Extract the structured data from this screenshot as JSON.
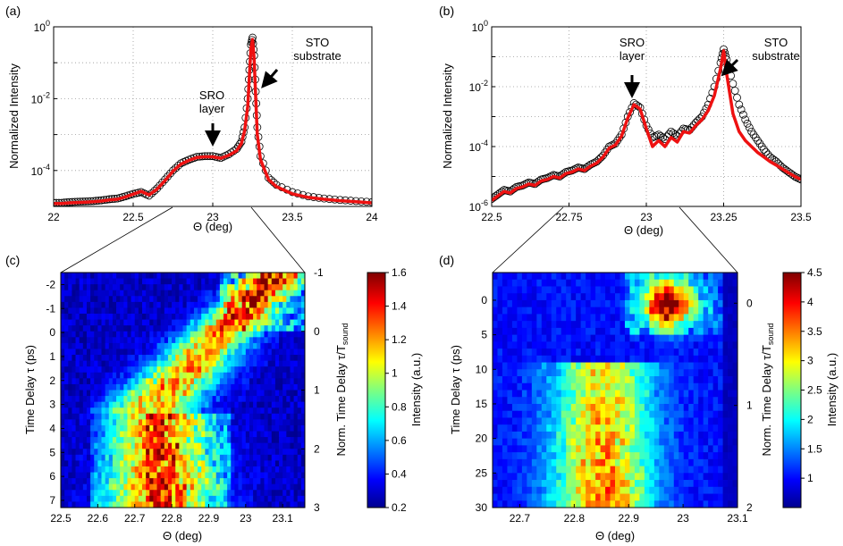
{
  "chart_data": [
    {
      "panel": "(a)",
      "type": "line",
      "xlabel": "Θ (deg)",
      "ylabel": "Normalized Intensity",
      "xlim": [
        22,
        24
      ],
      "ylim_log10": [
        -5,
        0
      ],
      "yscale": "log",
      "x_ticks": [
        "22",
        "22.5",
        "23",
        "23.5",
        "24"
      ],
      "y_ticks": [
        "10^0",
        "10^-2",
        "10^-4"
      ],
      "grid": true,
      "annotations": [
        {
          "text": "SRO\nlayer",
          "lines": [
            "SRO",
            "layer"
          ],
          "x": 22.98,
          "y_log10": -3.6
        },
        {
          "text": "STO\nsubstrate",
          "lines": [
            "STO",
            "substrate"
          ],
          "x": 23.25,
          "y_log10": -1.5
        }
      ],
      "series": [
        {
          "name": "measured",
          "style": "open black circles",
          "x": [
            22.0,
            22.05,
            22.1,
            22.15,
            22.2,
            22.25,
            22.3,
            22.35,
            22.4,
            22.45,
            22.5,
            22.55,
            22.6,
            22.65,
            22.7,
            22.75,
            22.8,
            22.85,
            22.9,
            22.95,
            23.0,
            23.05,
            23.1,
            23.15,
            23.18,
            23.2,
            23.22,
            23.23,
            23.24,
            23.25,
            23.26,
            23.27,
            23.28,
            23.3,
            23.35,
            23.4,
            23.5,
            23.6,
            23.7,
            23.8,
            23.9,
            24.0
          ],
          "y_log10": [
            -4.9,
            -4.9,
            -4.88,
            -4.87,
            -4.86,
            -4.85,
            -4.83,
            -4.8,
            -4.78,
            -4.72,
            -4.65,
            -4.6,
            -4.7,
            -4.5,
            -4.25,
            -4.0,
            -3.8,
            -3.7,
            -3.62,
            -3.6,
            -3.6,
            -3.65,
            -3.55,
            -3.4,
            -3.2,
            -2.8,
            -2.0,
            -1.2,
            -0.5,
            -0.3,
            -0.8,
            -1.8,
            -2.8,
            -3.6,
            -4.2,
            -4.4,
            -4.6,
            -4.72,
            -4.78,
            -4.82,
            -4.85,
            -4.88
          ]
        },
        {
          "name": "fit",
          "style": "red line",
          "x": [
            22.0,
            22.05,
            22.1,
            22.15,
            22.2,
            22.25,
            22.3,
            22.35,
            22.4,
            22.45,
            22.5,
            22.55,
            22.6,
            22.65,
            22.7,
            22.75,
            22.8,
            22.85,
            22.9,
            22.95,
            23.0,
            23.05,
            23.1,
            23.15,
            23.18,
            23.2,
            23.22,
            23.23,
            23.24,
            23.25,
            23.26,
            23.27,
            23.28,
            23.3,
            23.35,
            23.4,
            23.5,
            23.6,
            23.7,
            23.8,
            23.9,
            24.0
          ],
          "y_log10": [
            -4.92,
            -4.92,
            -4.9,
            -4.89,
            -4.88,
            -4.87,
            -4.85,
            -4.82,
            -4.8,
            -4.74,
            -4.66,
            -4.58,
            -4.68,
            -4.52,
            -4.28,
            -4.02,
            -3.82,
            -3.72,
            -3.64,
            -3.62,
            -3.62,
            -3.66,
            -3.58,
            -3.45,
            -3.25,
            -2.9,
            -2.2,
            -1.4,
            -0.6,
            -0.35,
            -0.9,
            -2.0,
            -3.0,
            -3.7,
            -4.25,
            -4.45,
            -4.65,
            -4.75,
            -4.8,
            -4.84,
            -4.87,
            -4.9
          ]
        }
      ]
    },
    {
      "panel": "(b)",
      "type": "line",
      "xlabel": "Θ (deg)",
      "ylabel": "Normalized Intensity",
      "xlim": [
        22.5,
        23.5
      ],
      "ylim_log10": [
        -6,
        0
      ],
      "yscale": "log",
      "x_ticks": [
        "22.5",
        "22.75",
        "23",
        "23.25",
        "23.5"
      ],
      "y_ticks": [
        "10^0",
        "10^-2",
        "10^-4",
        "10^-6"
      ],
      "grid": true,
      "annotations": [
        {
          "text": "SRO\nlayer",
          "lines": [
            "SRO",
            "layer"
          ],
          "x": 22.96,
          "y_log10": -1.8
        },
        {
          "text": "STO\nsubstrate",
          "lines": [
            "STO",
            "substrate"
          ],
          "x": 23.3,
          "y_log10": -0.8
        }
      ],
      "series": [
        {
          "name": "measured",
          "style": "open black circles",
          "x": [
            22.5,
            22.52,
            22.54,
            22.56,
            22.58,
            22.6,
            22.62,
            22.64,
            22.66,
            22.68,
            22.7,
            22.72,
            22.74,
            22.76,
            22.78,
            22.8,
            22.82,
            22.84,
            22.86,
            22.88,
            22.9,
            22.92,
            22.94,
            22.96,
            22.98,
            23.0,
            23.02,
            23.04,
            23.06,
            23.08,
            23.1,
            23.12,
            23.14,
            23.16,
            23.18,
            23.2,
            23.22,
            23.24,
            23.25,
            23.26,
            23.28,
            23.3,
            23.32,
            23.34,
            23.36,
            23.38,
            23.4,
            23.42,
            23.44,
            23.46,
            23.48,
            23.5
          ],
          "y_log10": [
            -5.75,
            -5.6,
            -5.45,
            -5.5,
            -5.35,
            -5.3,
            -5.2,
            -5.25,
            -5.1,
            -5.05,
            -4.95,
            -5.0,
            -4.85,
            -4.8,
            -4.7,
            -4.75,
            -4.6,
            -4.5,
            -4.3,
            -4.0,
            -3.9,
            -3.6,
            -3.0,
            -2.55,
            -2.7,
            -3.3,
            -3.7,
            -3.6,
            -3.75,
            -3.5,
            -3.65,
            -3.4,
            -3.45,
            -3.2,
            -3.0,
            -2.6,
            -2.0,
            -1.2,
            -0.75,
            -1.1,
            -1.9,
            -2.6,
            -3.1,
            -3.5,
            -3.8,
            -4.1,
            -4.35,
            -4.5,
            -4.7,
            -4.85,
            -5.0,
            -5.1
          ]
        },
        {
          "name": "fit",
          "style": "red line",
          "x": [
            22.5,
            22.52,
            22.54,
            22.56,
            22.58,
            22.6,
            22.62,
            22.64,
            22.66,
            22.68,
            22.7,
            22.72,
            22.74,
            22.76,
            22.78,
            22.8,
            22.82,
            22.84,
            22.86,
            22.88,
            22.9,
            22.92,
            22.94,
            22.96,
            22.98,
            23.0,
            23.02,
            23.04,
            23.06,
            23.08,
            23.1,
            23.12,
            23.14,
            23.16,
            23.18,
            23.2,
            23.22,
            23.24,
            23.25,
            23.26,
            23.28,
            23.3,
            23.32,
            23.34,
            23.36,
            23.38,
            23.4,
            23.42,
            23.44,
            23.46,
            23.48,
            23.5
          ],
          "y_log10": [
            -5.8,
            -5.65,
            -5.5,
            -5.55,
            -5.4,
            -5.35,
            -5.25,
            -5.3,
            -5.15,
            -5.1,
            -5.0,
            -5.05,
            -4.9,
            -4.85,
            -4.75,
            -4.8,
            -4.65,
            -4.55,
            -4.35,
            -4.05,
            -3.95,
            -3.65,
            -3.05,
            -2.6,
            -2.75,
            -3.4,
            -4.0,
            -3.8,
            -4.0,
            -3.7,
            -3.85,
            -3.5,
            -3.55,
            -3.3,
            -3.1,
            -2.8,
            -2.3,
            -1.4,
            -0.8,
            -1.6,
            -2.9,
            -3.5,
            -3.8,
            -4.0,
            -4.2,
            -4.35,
            -4.5,
            -4.62,
            -4.75,
            -4.88,
            -5.0,
            -5.1
          ]
        }
      ]
    },
    {
      "panel": "(c)",
      "type": "heatmap",
      "xlabel": "Θ (deg)",
      "ylabel": "Time Delay τ (ps)",
      "ylabel2": "Norm. Time Delay τ/T",
      "ylabel2_sub": "sound",
      "xlim": [
        22.5,
        23.16
      ],
      "ylim": [
        -2.5,
        7.3
      ],
      "y2lim": [
        -1,
        3
      ],
      "x_ticks": [
        "22.5",
        "22.6",
        "22.7",
        "22.8",
        "22.9",
        "23",
        "23.1"
      ],
      "y_ticks": [
        "-2",
        "-1",
        "0",
        "1",
        "2",
        "3",
        "4",
        "5",
        "6",
        "7"
      ],
      "y2_ticks": [
        "-1",
        "0",
        "1",
        "2",
        "3"
      ],
      "colorbar": {
        "label": "Intensity (a.u.)",
        "min": 0.2,
        "max": 1.6,
        "ticks": [
          "0.2",
          "0.4",
          "0.6",
          "0.8",
          "1",
          "1.2",
          "1.4",
          "1.6"
        ]
      }
    },
    {
      "panel": "(d)",
      "type": "heatmap",
      "xlabel": "Θ (deg)",
      "ylabel": "Time Delay τ (ps)",
      "ylabel2": "Norm. Time Delay τ/T",
      "ylabel2_sub": "sound",
      "xlim": [
        22.65,
        23.1
      ],
      "ylim": [
        -4,
        30
      ],
      "y2lim": [
        -0.3,
        2
      ],
      "x_ticks": [
        "22.7",
        "22.8",
        "22.9",
        "23",
        "23.1"
      ],
      "y_ticks": [
        "0",
        "5",
        "10",
        "15",
        "20",
        "25",
        "30"
      ],
      "y2_ticks": [
        "0",
        "1",
        "2"
      ],
      "colorbar": {
        "label": "Intensity (a.u.)",
        "min": 0.5,
        "max": 4.5,
        "ticks": [
          "1",
          "1.5",
          "2",
          "2.5",
          "3",
          "3.5",
          "4",
          "4.5"
        ]
      }
    }
  ]
}
